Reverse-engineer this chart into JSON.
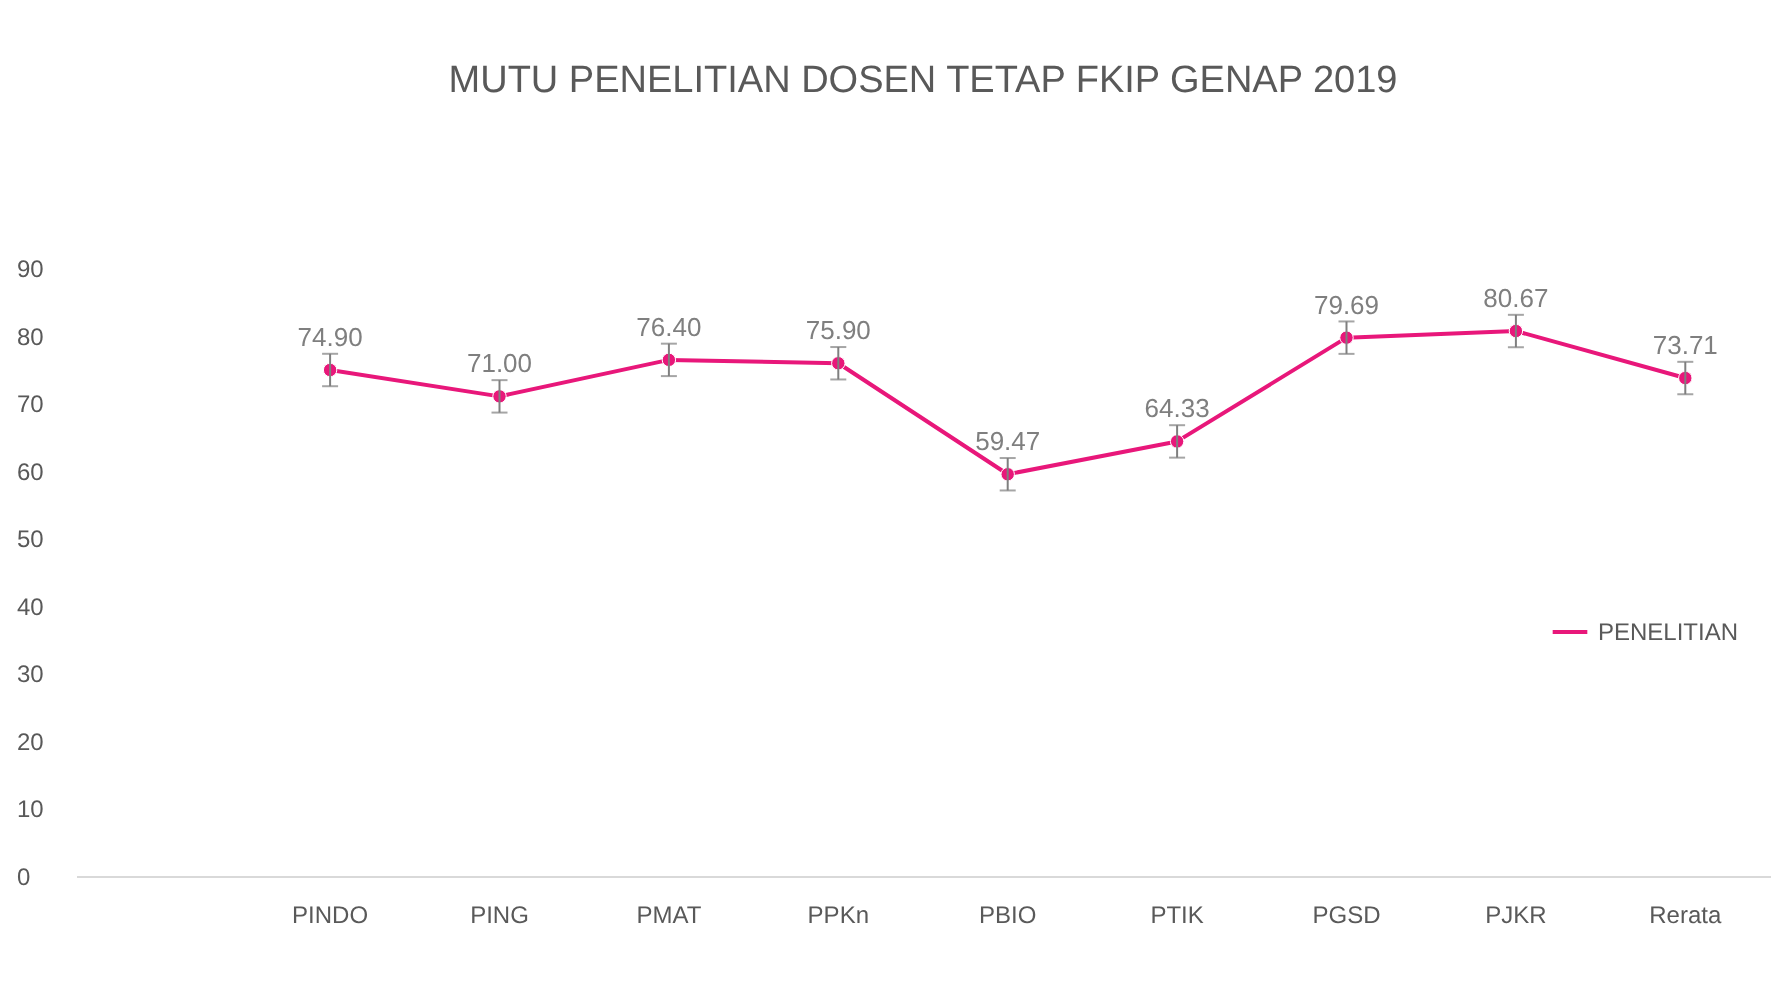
{
  "chart_data": {
    "type": "line",
    "title": "MUTU PENELITIAN DOSEN TETAP FKIP GENAP 2019",
    "categories": [
      null,
      "PINDO",
      "PING",
      "PMAT",
      "PPKn",
      "PBIO",
      "PTIK",
      "PGSD",
      "PJKR",
      "Rerata"
    ],
    "series": [
      {
        "name": "PENELITIAN",
        "color": "#e8177a",
        "values": [
          null,
          74.9,
          71.0,
          76.4,
          75.9,
          59.47,
          64.33,
          79.69,
          80.67,
          73.71
        ],
        "errors": [
          null,
          2.4,
          2.4,
          2.4,
          2.4,
          2.4,
          2.4,
          2.4,
          2.4,
          2.4
        ],
        "value_labels": [
          null,
          "74.90",
          "71.00",
          "76.40",
          "75.90",
          "59.47",
          "64.33",
          "79.69",
          "80.67",
          "73.71"
        ]
      }
    ],
    "ylim": [
      0,
      90
    ],
    "yticks": [
      0,
      10,
      20,
      30,
      40,
      50,
      60,
      70,
      80,
      90
    ],
    "grid": false,
    "legend": "right",
    "marker": "circle",
    "line_style": "solid"
  }
}
